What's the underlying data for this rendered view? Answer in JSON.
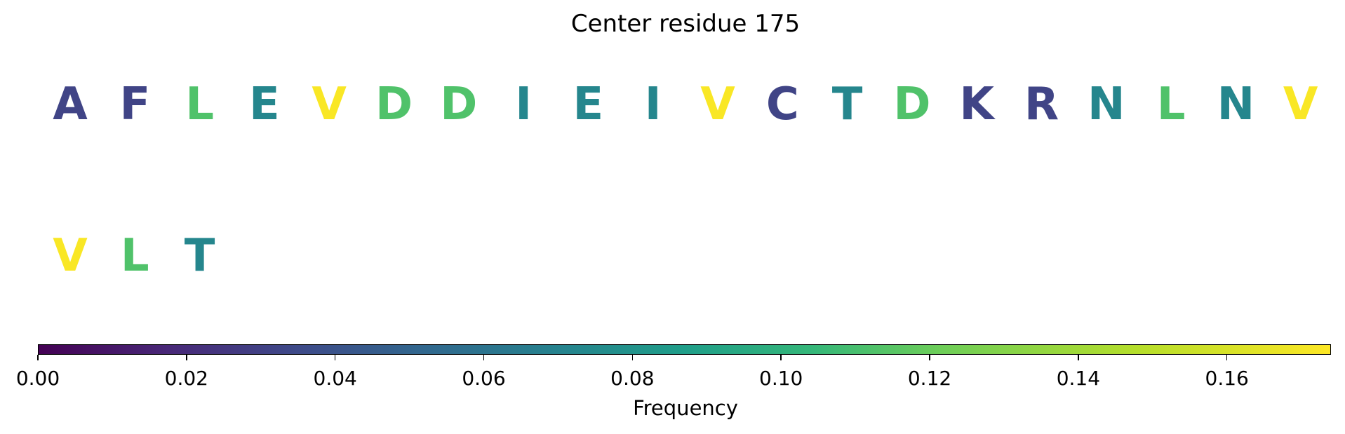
{
  "chart_data": {
    "type": "heatmap",
    "title": "Center residue 175",
    "residues": [
      {
        "letter": "A",
        "frequency": 0.035
      },
      {
        "letter": "F",
        "frequency": 0.035
      },
      {
        "letter": "L",
        "frequency": 0.125
      },
      {
        "letter": "E",
        "frequency": 0.08
      },
      {
        "letter": "V",
        "frequency": 0.173
      },
      {
        "letter": "D",
        "frequency": 0.125
      },
      {
        "letter": "D",
        "frequency": 0.125
      },
      {
        "letter": "I",
        "frequency": 0.08
      },
      {
        "letter": "E",
        "frequency": 0.08
      },
      {
        "letter": "I",
        "frequency": 0.08
      },
      {
        "letter": "V",
        "frequency": 0.173
      },
      {
        "letter": "C",
        "frequency": 0.035
      },
      {
        "letter": "T",
        "frequency": 0.08
      },
      {
        "letter": "D",
        "frequency": 0.125
      },
      {
        "letter": "K",
        "frequency": 0.035
      },
      {
        "letter": "R",
        "frequency": 0.035
      },
      {
        "letter": "N",
        "frequency": 0.08
      },
      {
        "letter": "L",
        "frequency": 0.125
      },
      {
        "letter": "N",
        "frequency": 0.08
      },
      {
        "letter": "V",
        "frequency": 0.173
      },
      {
        "letter": "V",
        "frequency": 0.173
      },
      {
        "letter": "L",
        "frequency": 0.125
      },
      {
        "letter": "T",
        "frequency": 0.08
      }
    ],
    "colorbar": {
      "label": "Frequency",
      "colormap": "viridis",
      "range": [
        0.0,
        0.174
      ],
      "ticks": [
        0.0,
        0.02,
        0.04,
        0.06,
        0.08,
        0.1,
        0.12,
        0.14,
        0.16
      ],
      "tick_labels": [
        "0.00",
        "0.02",
        "0.04",
        "0.06",
        "0.08",
        "0.10",
        "0.12",
        "0.14",
        "0.16"
      ]
    }
  }
}
